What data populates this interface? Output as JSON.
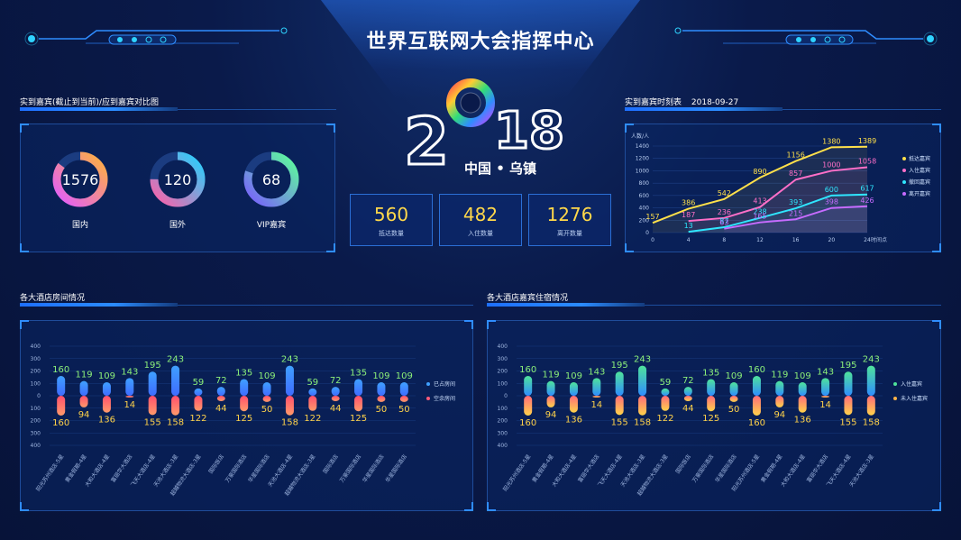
{
  "header": {
    "title": "世界互联网大会指挥中心"
  },
  "logo": {
    "year_left": "2",
    "year_right": "18",
    "subtitle": "中国 • 乌镇"
  },
  "guests_panel": {
    "title": "实到嘉宾(截止到当前)/应到嘉宾对比图",
    "rings": [
      {
        "value": "1576",
        "label": "国内",
        "color_a": "#e25cff",
        "color_b": "#ffb13d",
        "fraction": 0.85
      },
      {
        "value": "120",
        "label": "国外",
        "color_a": "#ff5fa8",
        "color_b": "#22d3ff",
        "fraction": 0.75
      },
      {
        "value": "68",
        "label": "VIP嘉宾",
        "color_a": "#7a5cff",
        "color_b": "#5cff9a",
        "fraction": 0.8
      }
    ]
  },
  "stats": [
    {
      "value": "560",
      "label": "抵达数量"
    },
    {
      "value": "482",
      "label": "入住数量"
    },
    {
      "value": "1276",
      "label": "离开数量"
    }
  ],
  "timeline_panel": {
    "title": "实到嘉宾时刻表",
    "date": "2018-09-27"
  },
  "hotel_rooms_panel": {
    "title": "各大酒店房间情况"
  },
  "hotel_guests_panel": {
    "title": "各大酒店嘉宾住宿情况"
  },
  "chart_data": [
    {
      "type": "line",
      "ylabel": "人数/人",
      "xlabel": "时间点",
      "x": [
        0,
        4,
        8,
        12,
        16,
        20,
        24
      ],
      "xticks": [
        "0",
        "4",
        "8",
        "12",
        "16",
        "20",
        "24"
      ],
      "yticks": [
        "0",
        "200",
        "400",
        "600",
        "800",
        "1000",
        "1200",
        "1400"
      ],
      "ylim": [
        0,
        1400
      ],
      "legend_position": "right",
      "series": [
        {
          "name": "抵达嘉宾",
          "color": "#ffe04a",
          "x": [
            0,
            4,
            8,
            12,
            16,
            20,
            24
          ],
          "values": [
            157,
            386,
            542,
            890,
            1156,
            1380,
            1389
          ]
        },
        {
          "name": "入住嘉宾",
          "color": "#ff6fc8",
          "x": [
            4,
            8,
            12,
            16,
            20,
            24
          ],
          "values": [
            187,
            236,
            413,
            857,
            1000,
            1058
          ]
        },
        {
          "name": "撤回嘉宾",
          "color": "#2fe6ff",
          "x": [
            4,
            8,
            12,
            16,
            20,
            24
          ],
          "values": [
            13,
            87,
            238,
            393,
            600,
            617
          ]
        },
        {
          "name": "离开嘉宾",
          "color": "#c66bff",
          "x": [
            8,
            12,
            16,
            20,
            24
          ],
          "values": [
            63,
            165,
            215,
            398,
            426
          ]
        }
      ]
    },
    {
      "type": "bar",
      "yticks": [
        "400",
        "300",
        "200",
        "100",
        "0",
        "100",
        "200",
        "300",
        "400"
      ],
      "ylim": [
        -400,
        400
      ],
      "legend_position": "right",
      "categories": [
        "阳光苏州酒店-5星",
        "黄金假期-4星",
        "大和大酒店-4星",
        "富丽华大酒店",
        "飞天大酒店-4星",
        "天池大酒店-3星",
        "超越物流大酒店-3星",
        "国际饭店",
        "万豪国际酒店",
        "华星国际酒店",
        "天池大酒店-4星",
        "超越物流大酒店-3星",
        "国际酒店",
        "万豪国际酒店",
        "华星国际酒店",
        "华星国际酒店"
      ],
      "series": [
        {
          "name": "已占房间",
          "color": "#3fa0ff",
          "values": [
            160,
            119,
            109,
            143,
            195,
            243,
            59,
            72,
            135,
            109,
            243,
            59,
            72,
            135,
            109,
            109
          ]
        },
        {
          "name": "空余房间",
          "color": "#ff5a7a",
          "values": [
            160,
            94,
            136,
            14,
            155,
            158,
            122,
            44,
            125,
            50,
            158,
            122,
            44,
            125,
            50,
            50
          ]
        }
      ]
    },
    {
      "type": "bar",
      "yticks": [
        "400",
        "300",
        "200",
        "100",
        "0",
        "100",
        "200",
        "300",
        "400"
      ],
      "ylim": [
        -400,
        400
      ],
      "legend_position": "right",
      "categories": [
        "阳光苏州酒店-5星",
        "黄金假期-4星",
        "大和大酒店-4星",
        "富丽华大酒店",
        "飞天大酒店-4星",
        "天池大酒店-3星",
        "超越物流大酒店-3星",
        "国际饭店",
        "万豪国际酒店",
        "华星国际酒店",
        "阳光苏州酒店-5星",
        "黄金假期-4星",
        "大和大酒店-4星",
        "富丽华大酒店",
        "飞天大酒店-4星",
        "天池大酒店-3星"
      ],
      "series": [
        {
          "name": "入住嘉宾",
          "color": "#4fe39a",
          "values": [
            160,
            119,
            109,
            143,
            195,
            243,
            59,
            72,
            135,
            109,
            160,
            119,
            109,
            143,
            195,
            243
          ]
        },
        {
          "name": "未入住嘉宾",
          "color": "#ffb347",
          "values": [
            160,
            94,
            136,
            14,
            155,
            158,
            122,
            44,
            125,
            50,
            160,
            94,
            136,
            14,
            155,
            158
          ]
        }
      ]
    }
  ]
}
